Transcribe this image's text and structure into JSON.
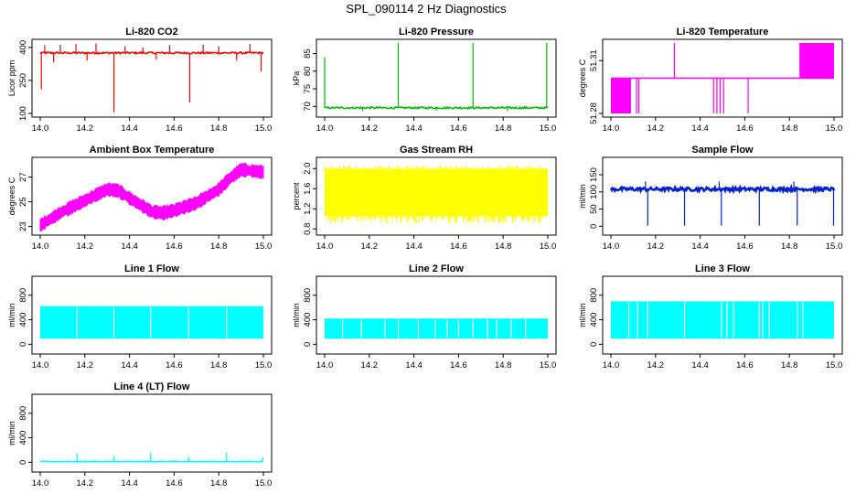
{
  "figure_title": "SPL_090114  2 Hz Diagnostics",
  "chart_data": [
    {
      "id": "co2",
      "type": "line",
      "title": "Li-820 CO2",
      "ylabel": "Licor ppm",
      "color": "#ff0000",
      "xlim": [
        14.0,
        15.0
      ],
      "ylim": [
        100,
        420
      ],
      "xticks": [
        14.0,
        14.2,
        14.4,
        14.6,
        14.8,
        15.0
      ],
      "xtick_labels": [
        "14.0",
        "14.2",
        "14.4",
        "14.6",
        "14.8",
        "15.0"
      ],
      "yticks": [
        100,
        250,
        400
      ],
      "ytick_labels": [
        "100",
        "250",
        "400"
      ],
      "baseline": [
        [
          14.0,
          375
        ],
        [
          15.0,
          375
        ]
      ],
      "noise": 4,
      "spikes": [
        [
          14.005,
          210
        ],
        [
          14.02,
          410
        ],
        [
          14.06,
          332
        ],
        [
          14.09,
          412
        ],
        [
          14.16,
          415
        ],
        [
          14.21,
          340
        ],
        [
          14.25,
          418
        ],
        [
          14.33,
          105
        ],
        [
          14.38,
          405
        ],
        [
          14.46,
          400
        ],
        [
          14.52,
          345
        ],
        [
          14.58,
          410
        ],
        [
          14.67,
          150
        ],
        [
          14.73,
          412
        ],
        [
          14.8,
          405
        ],
        [
          14.88,
          340
        ],
        [
          14.94,
          415
        ],
        [
          14.99,
          290
        ]
      ]
    },
    {
      "id": "pressure",
      "type": "line",
      "title": "Li-820 Pressure",
      "ylabel": "kPa",
      "color": "#00bb00",
      "xlim": [
        14.0,
        15.0
      ],
      "ylim": [
        68,
        88
      ],
      "xticks": [
        14.0,
        14.2,
        14.4,
        14.6,
        14.8,
        15.0
      ],
      "xtick_labels": [
        "14.0",
        "14.2",
        "14.4",
        "14.6",
        "14.8",
        "15.0"
      ],
      "yticks": [
        70,
        75,
        80,
        85
      ],
      "ytick_labels": [
        "70",
        "75",
        "80",
        "85"
      ],
      "baseline": [
        [
          14.0,
          69.6
        ],
        [
          15.0,
          69.6
        ]
      ],
      "noise": 0.25,
      "spikes": [
        [
          14.0,
          84
        ],
        [
          14.33,
          88
        ],
        [
          14.665,
          88
        ],
        [
          14.995,
          88
        ],
        [
          14.17,
          68.7
        ],
        [
          14.5,
          68.8
        ],
        [
          14.82,
          68.7
        ]
      ]
    },
    {
      "id": "temp820",
      "type": "line",
      "title": "Li-820 Temperature",
      "ylabel": "degrees C",
      "color": "#ff00ff",
      "xlim": [
        14.0,
        15.0
      ],
      "ylim": [
        51.28,
        51.32
      ],
      "xticks": [
        14.0,
        14.2,
        14.4,
        14.6,
        14.8,
        15.0
      ],
      "xtick_labels": [
        "14.0",
        "14.2",
        "14.4",
        "14.6",
        "14.8",
        "15.0"
      ],
      "yticks": [
        51.28,
        51.31
      ],
      "ytick_labels": [
        "51.28",
        "51.31"
      ],
      "base_level": 51.3,
      "blocks": [
        [
          14.0,
          14.09,
          51.28,
          51.3
        ],
        [
          14.845,
          15.0,
          51.3,
          51.32
        ]
      ],
      "spikes": [
        [
          14.115,
          51.28
        ],
        [
          14.125,
          51.28
        ],
        [
          14.285,
          51.32
        ],
        [
          14.46,
          51.28
        ],
        [
          14.475,
          51.28
        ],
        [
          14.49,
          51.28
        ],
        [
          14.505,
          51.28
        ],
        [
          14.615,
          51.28
        ]
      ]
    },
    {
      "id": "ambient",
      "type": "band",
      "title": "Ambient Box Temperature",
      "ylabel": "degrees C",
      "color": "#ff00ff",
      "xlim": [
        14.0,
        15.0
      ],
      "ylim": [
        22.6,
        28.3
      ],
      "xticks": [
        14.0,
        14.2,
        14.4,
        14.6,
        14.8,
        15.0
      ],
      "xtick_labels": [
        "14.0",
        "14.2",
        "14.4",
        "14.6",
        "14.8",
        "15.0"
      ],
      "yticks": [
        23,
        25,
        27
      ],
      "ytick_labels": [
        "23",
        "25",
        "27"
      ],
      "series": [
        [
          14.0,
          23.1
        ],
        [
          14.1,
          24.2
        ],
        [
          14.2,
          25.1
        ],
        [
          14.3,
          26.0
        ],
        [
          14.35,
          25.9
        ],
        [
          14.4,
          25.3
        ],
        [
          14.5,
          24.2
        ],
        [
          14.55,
          24.1
        ],
        [
          14.6,
          24.3
        ],
        [
          14.7,
          24.9
        ],
        [
          14.8,
          26.0
        ],
        [
          14.85,
          26.9
        ],
        [
          14.9,
          27.6
        ],
        [
          14.95,
          27.5
        ],
        [
          15.0,
          27.4
        ]
      ],
      "band_halfwidth": 0.45
    },
    {
      "id": "rh",
      "type": "band",
      "title": "Gas Stream RH",
      "ylabel": "percent",
      "color": "#ffff00",
      "xlim": [
        14.0,
        15.0
      ],
      "ylim": [
        0.75,
        2.15
      ],
      "xticks": [
        14.0,
        14.2,
        14.4,
        14.6,
        14.8,
        15.0
      ],
      "xtick_labels": [
        "14.0",
        "14.2",
        "14.4",
        "14.6",
        "14.8",
        "15.0"
      ],
      "yticks": [
        0.8,
        1.2,
        1.6,
        2.0
      ],
      "ytick_labels": [
        "0.8",
        "1.2",
        "1.6",
        "2.0"
      ],
      "band_top": 2.0,
      "band_bottom": 1.05,
      "min_dip": 0.9
    },
    {
      "id": "sample",
      "type": "line",
      "title": "Sample Flow",
      "ylabel": "ml/min",
      "color": "#0022cc",
      "xlim": [
        14.0,
        15.0
      ],
      "ylim": [
        -15,
        190
      ],
      "xticks": [
        14.0,
        14.2,
        14.4,
        14.6,
        14.8,
        15.0
      ],
      "xtick_labels": [
        "14.0",
        "14.2",
        "14.4",
        "14.6",
        "14.8",
        "15.0"
      ],
      "yticks": [
        0,
        50,
        100,
        150
      ],
      "ytick_labels": [
        "0",
        "50",
        "100",
        "150"
      ],
      "baseline": [
        [
          14.0,
          108
        ],
        [
          15.0,
          108
        ]
      ],
      "noise": 5,
      "spikes": [
        [
          14.165,
          2
        ],
        [
          14.33,
          2
        ],
        [
          14.495,
          2
        ],
        [
          14.665,
          2
        ],
        [
          14.835,
          2
        ],
        [
          14.998,
          2
        ],
        [
          14.155,
          130
        ],
        [
          14.485,
          130
        ],
        [
          14.82,
          130
        ]
      ]
    },
    {
      "id": "line1",
      "type": "band",
      "title": "Line 1 Flow",
      "ylabel": "ml/min",
      "color": "#00ffff",
      "xlim": [
        14.0,
        15.0
      ],
      "ylim": [
        -100,
        1050
      ],
      "xticks": [
        14.0,
        14.2,
        14.4,
        14.6,
        14.8,
        15.0
      ],
      "xtick_labels": [
        "14.0",
        "14.2",
        "14.4",
        "14.6",
        "14.8",
        "15.0"
      ],
      "yticks": [
        0,
        400,
        800
      ],
      "ytick_labels": [
        "0",
        "400",
        "800"
      ],
      "band_top": 620,
      "band_bottom": 90,
      "gaps": [
        14.165,
        14.33,
        14.495,
        14.665,
        14.835
      ]
    },
    {
      "id": "line2",
      "type": "band",
      "title": "Line 2 Flow",
      "ylabel": "ml/min",
      "color": "#00ffff",
      "xlim": [
        14.0,
        15.0
      ],
      "ylim": [
        -100,
        1050
      ],
      "xticks": [
        14.0,
        14.2,
        14.4,
        14.6,
        14.8,
        15.0
      ],
      "xtick_labels": [
        "14.0",
        "14.2",
        "14.4",
        "14.6",
        "14.8",
        "15.0"
      ],
      "yticks": [
        0,
        400,
        800
      ],
      "ytick_labels": [
        "0",
        "400",
        "800"
      ],
      "band_top": 420,
      "band_bottom": 90,
      "gaps": [
        14.165,
        14.33,
        14.495,
        14.665,
        14.835,
        14.08,
        14.27,
        14.42,
        14.55,
        14.6,
        14.73,
        14.77,
        14.9
      ]
    },
    {
      "id": "line3",
      "type": "band",
      "title": "Line 3 Flow",
      "ylabel": "ml/min",
      "color": "#00ffff",
      "xlim": [
        14.0,
        15.0
      ],
      "ylim": [
        -100,
        1050
      ],
      "xticks": [
        14.0,
        14.2,
        14.4,
        14.6,
        14.8,
        15.0
      ],
      "xtick_labels": [
        "14.0",
        "14.2",
        "14.4",
        "14.6",
        "14.8",
        "15.0"
      ],
      "yticks": [
        0,
        400,
        800
      ],
      "ytick_labels": [
        "0",
        "400",
        "800"
      ],
      "band_top": 700,
      "band_bottom": 90,
      "gaps": [
        14.165,
        14.33,
        14.495,
        14.665,
        14.835,
        14.08,
        14.12,
        14.52,
        14.55,
        14.68,
        14.71,
        14.86
      ]
    },
    {
      "id": "line4",
      "type": "line",
      "title": "Line 4 (LT) Flow",
      "ylabel": "ml/min",
      "color": "#00ffff",
      "xlim": [
        14.0,
        15.0
      ],
      "ylim": [
        -100,
        1050
      ],
      "xticks": [
        14.0,
        14.2,
        14.4,
        14.6,
        14.8,
        15.0
      ],
      "xtick_labels": [
        "14.0",
        "14.2",
        "14.4",
        "14.6",
        "14.8",
        "15.0"
      ],
      "yticks": [
        0,
        400,
        800
      ],
      "ytick_labels": [
        "0",
        "400",
        "800"
      ],
      "baseline": [
        [
          14.0,
          12
        ],
        [
          15.0,
          12
        ]
      ],
      "noise": 6,
      "spikes": [
        [
          14.165,
          150
        ],
        [
          14.33,
          100
        ],
        [
          14.495,
          160
        ],
        [
          14.665,
          90
        ],
        [
          14.835,
          160
        ],
        [
          14.998,
          80
        ]
      ]
    }
  ]
}
